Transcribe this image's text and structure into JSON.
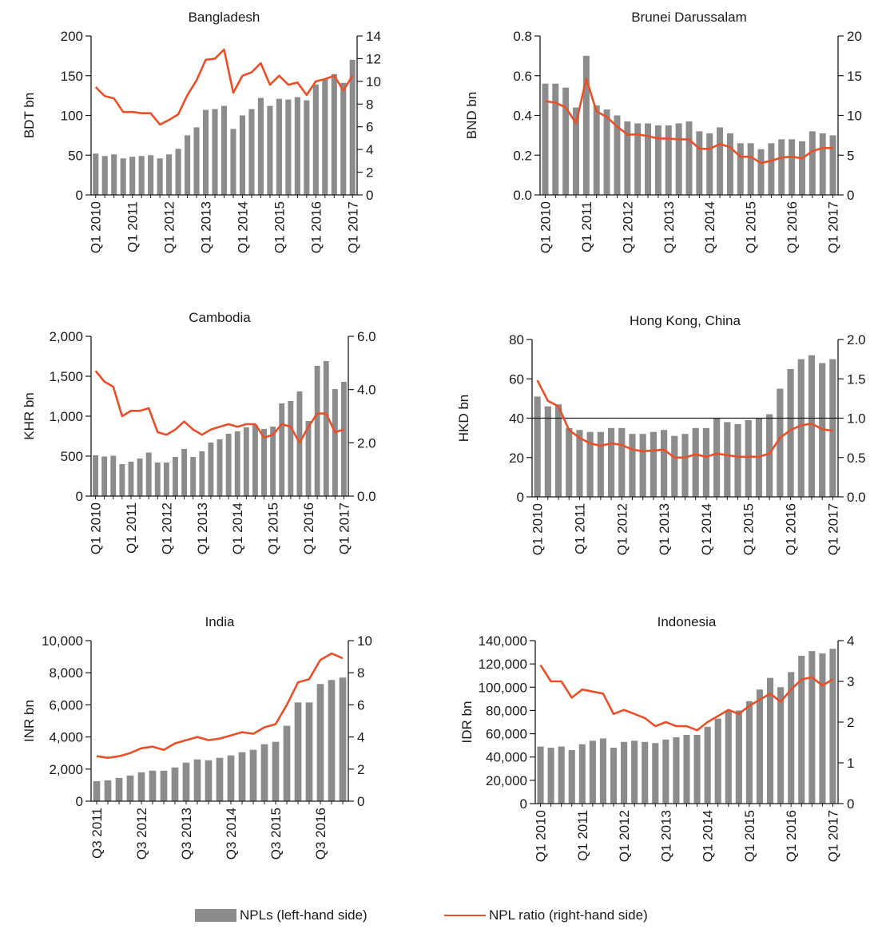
{
  "colors": {
    "bars": "#8c8c8d",
    "line": "#e8502a",
    "axis": "#1a1a1a"
  },
  "legend": {
    "bars_label": "NPLs (left-hand side)",
    "line_label": "NPL ratio (right-hand side)"
  },
  "chart_data": [
    {
      "type": "bar+line",
      "title": "Bangladesh",
      "ylabel": "BDT bn",
      "ylim": [
        0,
        200
      ],
      "y2lim": [
        0,
        14
      ],
      "yticks": [
        0,
        50,
        100,
        150,
        200
      ],
      "yticklabels": [
        "0",
        "50",
        "100",
        "150",
        "200"
      ],
      "y2ticks": [
        0,
        2,
        4,
        6,
        8,
        10,
        12,
        14
      ],
      "y2ticklabels": [
        "0",
        "2",
        "4",
        "6",
        "8",
        "10",
        "12",
        "14"
      ],
      "xticklabels": [
        "Q1 2010",
        "Q1 2011",
        "Q1 2012",
        "Q1 2013",
        "Q1 2014",
        "Q1 2015",
        "Q1 2016",
        "Q1 2017"
      ],
      "x": [
        "Q1 2010",
        "Q2 2010",
        "Q3 2010",
        "Q4 2010",
        "Q1 2011",
        "Q2 2011",
        "Q3 2011",
        "Q4 2011",
        "Q1 2012",
        "Q2 2012",
        "Q3 2012",
        "Q4 2012",
        "Q1 2013",
        "Q2 2013",
        "Q3 2013",
        "Q4 2013",
        "Q1 2014",
        "Q2 2014",
        "Q3 2014",
        "Q4 2014",
        "Q1 2015",
        "Q2 2015",
        "Q3 2015",
        "Q4 2015",
        "Q1 2016",
        "Q2 2016",
        "Q3 2016",
        "Q4 2016",
        "Q1 2017"
      ],
      "series": [
        {
          "name": "NPLs (left-hand side)",
          "values": [
            52,
            49,
            51,
            46,
            48,
            49,
            50,
            46,
            51,
            58,
            75,
            85,
            107,
            108,
            112,
            83,
            100,
            108,
            122,
            112,
            121,
            120,
            123,
            119,
            139,
            146,
            152,
            141,
            170
          ]
        },
        {
          "name": "NPL ratio (right-hand side)",
          "values": [
            9.5,
            8.7,
            8.5,
            7.3,
            7.3,
            7.2,
            7.2,
            6.2,
            6.6,
            7.1,
            8.8,
            10.1,
            11.9,
            12.0,
            12.8,
            9.0,
            10.5,
            10.8,
            11.6,
            9.7,
            10.5,
            9.7,
            9.9,
            8.8,
            10.0,
            10.2,
            10.5,
            9.2,
            10.5
          ]
        }
      ]
    },
    {
      "type": "bar+line",
      "title": "Brunei Darussalam",
      "ylabel": "BND bn",
      "ylim": [
        0,
        0.8
      ],
      "y2lim": [
        0,
        20
      ],
      "yticks": [
        0,
        0.2,
        0.4,
        0.6,
        0.8
      ],
      "yticklabels": [
        "0.0",
        "0.2",
        "0.4",
        "0.6",
        "0.8"
      ],
      "y2ticks": [
        0,
        5,
        10,
        15,
        20
      ],
      "y2ticklabels": [
        "0",
        "5",
        "10",
        "15",
        "20"
      ],
      "xticklabels": [
        "Q1 2010",
        "Q1 2011",
        "Q1 2012",
        "Q1 2013",
        "Q1 2014",
        "Q1 2015",
        "Q1 2016",
        "Q1 2017"
      ],
      "x": [
        "Q1 2010",
        "Q2 2010",
        "Q3 2010",
        "Q4 2010",
        "Q1 2011",
        "Q2 2011",
        "Q3 2011",
        "Q4 2011",
        "Q1 2012",
        "Q2 2012",
        "Q3 2012",
        "Q4 2012",
        "Q1 2013",
        "Q2 2013",
        "Q3 2013",
        "Q4 2013",
        "Q1 2014",
        "Q2 2014",
        "Q3 2014",
        "Q4 2014",
        "Q1 2015",
        "Q2 2015",
        "Q3 2015",
        "Q4 2015",
        "Q1 2016",
        "Q2 2016",
        "Q3 2016",
        "Q4 2016",
        "Q1 2017"
      ],
      "series": [
        {
          "name": "NPLs (left-hand side)",
          "values": [
            0.56,
            0.56,
            0.54,
            0.44,
            0.7,
            0.45,
            0.43,
            0.4,
            0.37,
            0.36,
            0.36,
            0.35,
            0.35,
            0.36,
            0.37,
            0.32,
            0.31,
            0.34,
            0.31,
            0.26,
            0.26,
            0.23,
            0.26,
            0.28,
            0.28,
            0.27,
            0.32,
            0.31,
            0.3
          ]
        },
        {
          "name": "NPL ratio (right-hand side)",
          "values": [
            11.8,
            11.6,
            11.0,
            9.0,
            14.6,
            10.5,
            9.8,
            8.6,
            7.6,
            7.6,
            7.4,
            7.1,
            7.1,
            7.0,
            7.0,
            5.8,
            5.8,
            6.4,
            6.0,
            4.8,
            4.8,
            4.0,
            4.3,
            4.7,
            4.8,
            4.6,
            5.5,
            5.9,
            5.9
          ]
        }
      ]
    },
    {
      "type": "bar+line",
      "title": "Cambodia",
      "ylabel": "KHR bn",
      "ylim": [
        0,
        2000
      ],
      "y2lim": [
        0,
        6
      ],
      "yticks": [
        0,
        500,
        1000,
        1500,
        2000
      ],
      "yticklabels": [
        "0",
        "500",
        "1,000",
        "1,500",
        "2,000"
      ],
      "y2ticks": [
        0,
        2,
        4,
        6
      ],
      "y2ticklabels": [
        "0.0",
        "2.0",
        "4.0",
        "6.0"
      ],
      "xticklabels": [
        "Q1 2010",
        "Q1 2011",
        "Q1 2012",
        "Q1 2013",
        "Q1 2014",
        "Q1 2015",
        "Q1 2016",
        "Q1 2017"
      ],
      "x": [
        "Q1 2010",
        "Q2 2010",
        "Q3 2010",
        "Q4 2010",
        "Q1 2011",
        "Q2 2011",
        "Q3 2011",
        "Q4 2011",
        "Q1 2012",
        "Q2 2012",
        "Q3 2012",
        "Q4 2012",
        "Q1 2013",
        "Q2 2013",
        "Q3 2013",
        "Q4 2013",
        "Q1 2014",
        "Q2 2014",
        "Q3 2014",
        "Q4 2014",
        "Q1 2015",
        "Q2 2015",
        "Q3 2015",
        "Q4 2015",
        "Q1 2016",
        "Q2 2016",
        "Q3 2016",
        "Q4 2016",
        "Q1 2017"
      ],
      "series": [
        {
          "name": "NPLs (left-hand side)",
          "values": [
            510,
            495,
            505,
            400,
            430,
            470,
            545,
            420,
            420,
            490,
            590,
            490,
            560,
            670,
            710,
            780,
            810,
            860,
            890,
            840,
            870,
            1160,
            1190,
            1310,
            940,
            1630,
            1690,
            1340,
            1430
          ]
        },
        {
          "name": "NPL ratio (right-hand side)",
          "values": [
            4.7,
            4.3,
            4.1,
            3.0,
            3.2,
            3.2,
            3.3,
            2.4,
            2.3,
            2.5,
            2.8,
            2.5,
            2.3,
            2.5,
            2.6,
            2.7,
            2.6,
            2.7,
            2.7,
            2.2,
            2.3,
            2.7,
            2.6,
            2.0,
            2.6,
            3.1,
            3.1,
            2.4,
            2.5
          ]
        }
      ]
    },
    {
      "type": "bar+line",
      "title": "Hong Kong, China",
      "ylabel": "HKD bn",
      "ylim": [
        0,
        80
      ],
      "y2lim": [
        0,
        2
      ],
      "yticks": [
        0,
        20,
        40,
        60,
        80
      ],
      "yticklabels": [
        "0",
        "20",
        "40",
        "60",
        "80"
      ],
      "y2ticks": [
        0,
        0.5,
        1,
        1.5,
        2
      ],
      "y2ticklabels": [
        "0.0",
        "0.5",
        "1.0",
        "1.5",
        "2.0"
      ],
      "refline": 40,
      "xticklabels": [
        "Q1 2010",
        "Q1 2011",
        "Q1 2012",
        "Q1 2013",
        "Q1 2014",
        "Q1 2015",
        "Q1 2016",
        "Q1 2017"
      ],
      "x": [
        "Q1 2010",
        "Q2 2010",
        "Q3 2010",
        "Q4 2010",
        "Q1 2011",
        "Q2 2011",
        "Q3 2011",
        "Q4 2011",
        "Q1 2012",
        "Q2 2012",
        "Q3 2012",
        "Q4 2012",
        "Q1 2013",
        "Q2 2013",
        "Q3 2013",
        "Q4 2013",
        "Q1 2014",
        "Q2 2014",
        "Q3 2014",
        "Q4 2014",
        "Q1 2015",
        "Q2 2015",
        "Q3 2015",
        "Q4 2015",
        "Q1 2016",
        "Q2 2016",
        "Q3 2016",
        "Q4 2016",
        "Q1 2017"
      ],
      "series": [
        {
          "name": "NPLs (left-hand side)",
          "values": [
            51,
            46,
            47,
            35,
            34,
            33,
            33,
            35,
            35,
            32,
            32,
            33,
            34,
            31,
            32,
            35,
            35,
            40,
            38,
            37,
            39,
            40,
            42,
            55,
            65,
            70,
            72,
            68,
            70
          ]
        },
        {
          "name": "NPL ratio (right-hand side)",
          "values": [
            1.48,
            1.22,
            1.15,
            0.85,
            0.75,
            0.68,
            0.65,
            0.68,
            0.66,
            0.6,
            0.58,
            0.59,
            0.6,
            0.5,
            0.5,
            0.54,
            0.51,
            0.55,
            0.53,
            0.51,
            0.51,
            0.51,
            0.55,
            0.75,
            0.85,
            0.91,
            0.93,
            0.86,
            0.84
          ]
        }
      ]
    },
    {
      "type": "bar+line",
      "title": "India",
      "ylabel": "INR bn",
      "ylim": [
        0,
        10000
      ],
      "y2lim": [
        0,
        10
      ],
      "yticks": [
        0,
        2000,
        4000,
        6000,
        8000,
        10000
      ],
      "yticklabels": [
        "0",
        "2,000",
        "4,000",
        "6,000",
        "8,000",
        "10,000"
      ],
      "y2ticks": [
        0,
        2,
        4,
        6,
        8,
        10
      ],
      "y2ticklabels": [
        "0",
        "2",
        "4",
        "6",
        "8",
        "10"
      ],
      "xticklabels": [
        "Q3 2011",
        "Q3 2012",
        "Q3 2013",
        "Q3 2014",
        "Q3 2015",
        "Q3 2016"
      ],
      "x": [
        "Q3 2011",
        "Q4 2011",
        "Q1 2012",
        "Q2 2012",
        "Q3 2012",
        "Q4 2012",
        "Q1 2013",
        "Q2 2013",
        "Q3 2013",
        "Q4 2013",
        "Q1 2014",
        "Q2 2014",
        "Q3 2014",
        "Q4 2014",
        "Q1 2015",
        "Q2 2015",
        "Q3 2015",
        "Q4 2015",
        "Q1 2016",
        "Q2 2016",
        "Q3 2016",
        "Q4 2016",
        "Q1 2017"
      ],
      "series": [
        {
          "name": "NPLs (left-hand side)",
          "values": [
            1250,
            1300,
            1450,
            1600,
            1800,
            1900,
            1900,
            2100,
            2400,
            2600,
            2550,
            2700,
            2850,
            3050,
            3200,
            3550,
            3700,
            4700,
            6150,
            6150,
            7300,
            7550,
            7700
          ]
        },
        {
          "name": "NPL ratio (right-hand side)",
          "values": [
            2.8,
            2.7,
            2.8,
            3.0,
            3.3,
            3.4,
            3.2,
            3.6,
            3.8,
            4.0,
            3.8,
            3.9,
            4.1,
            4.3,
            4.2,
            4.6,
            4.8,
            6.0,
            7.4,
            7.6,
            8.8,
            9.2,
            8.9
          ]
        }
      ]
    },
    {
      "type": "bar+line",
      "title": "Indonesia",
      "ylabel": "IDR bn",
      "ylim": [
        0,
        140000
      ],
      "y2lim": [
        0,
        4
      ],
      "yticks": [
        0,
        20000,
        40000,
        60000,
        80000,
        100000,
        120000,
        140000
      ],
      "yticklabels": [
        "0",
        "20,000",
        "40,000",
        "60,000",
        "80,000",
        "100,000",
        "120,000",
        "140,000"
      ],
      "y2ticks": [
        0,
        1,
        2,
        3,
        4
      ],
      "y2ticklabels": [
        "0",
        "1",
        "2",
        "3",
        "4"
      ],
      "xticklabels": [
        "Q1 2010",
        "Q1 2011",
        "Q1 2012",
        "Q1 2013",
        "Q1 2014",
        "Q1 2015",
        "Q1 2016",
        "Q1 2017"
      ],
      "x": [
        "Q1 2010",
        "Q2 2010",
        "Q3 2010",
        "Q4 2010",
        "Q1 2011",
        "Q2 2011",
        "Q3 2011",
        "Q4 2011",
        "Q1 2012",
        "Q2 2012",
        "Q3 2012",
        "Q4 2012",
        "Q1 2013",
        "Q2 2013",
        "Q3 2013",
        "Q4 2013",
        "Q1 2014",
        "Q2 2014",
        "Q3 2014",
        "Q4 2014",
        "Q1 2015",
        "Q2 2015",
        "Q3 2015",
        "Q4 2015",
        "Q1 2016",
        "Q2 2016",
        "Q3 2016",
        "Q4 2016",
        "Q1 2017"
      ],
      "series": [
        {
          "name": "NPLs (left-hand side)",
          "values": [
            49000,
            48000,
            49000,
            46000,
            51000,
            54000,
            56000,
            48000,
            53000,
            54000,
            53000,
            52000,
            55000,
            57000,
            59000,
            59000,
            66000,
            73000,
            80000,
            80000,
            88000,
            98000,
            108000,
            100000,
            113000,
            127000,
            131000,
            129000,
            133000
          ]
        },
        {
          "name": "NPL ratio (right-hand side)",
          "values": [
            3.4,
            3.0,
            3.0,
            2.6,
            2.8,
            2.75,
            2.7,
            2.2,
            2.3,
            2.2,
            2.1,
            1.9,
            2.0,
            1.9,
            1.9,
            1.8,
            2.0,
            2.15,
            2.3,
            2.2,
            2.4,
            2.55,
            2.7,
            2.5,
            2.8,
            3.05,
            3.1,
            2.9,
            3.05
          ]
        }
      ]
    }
  ]
}
